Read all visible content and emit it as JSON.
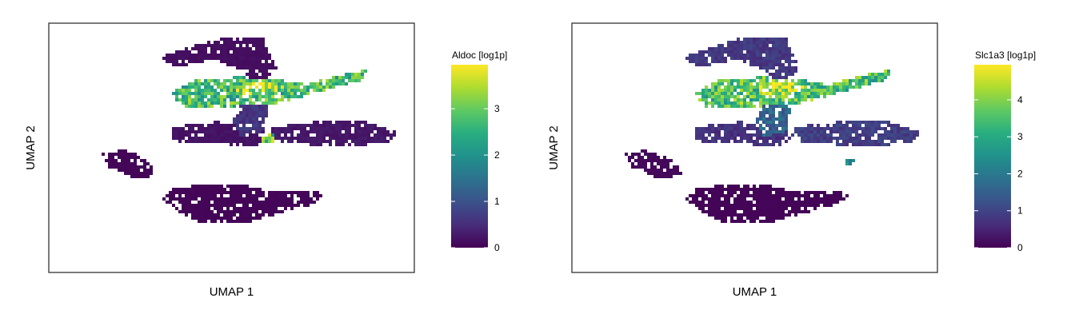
{
  "chart_data": [
    {
      "type": "heatmap",
      "title": "",
      "xlabel": "UMAP 1",
      "ylabel": "UMAP 2",
      "colorbar": {
        "label": "Aldoc [log1p]",
        "ticks": [
          0,
          1,
          2,
          3
        ],
        "range": [
          0,
          3.95
        ],
        "colormap": "viridis"
      },
      "regions": [
        {
          "label": "top-branch",
          "level": 0.15
        },
        {
          "label": "upper-lobe",
          "level": 2.7
        },
        {
          "label": "upper-core-bright",
          "level": 3.6
        },
        {
          "label": "stem",
          "level": 0.6
        },
        {
          "label": "middle-band",
          "level": 0.2
        },
        {
          "label": "middle-right-lobe",
          "level": 0.25
        },
        {
          "label": "lower-blob",
          "level": 0.05
        },
        {
          "label": "left-scatter",
          "level": 0.05
        },
        {
          "label": "small-green-cluster",
          "level": 2.9
        }
      ]
    },
    {
      "type": "heatmap",
      "title": "",
      "xlabel": "UMAP 1",
      "ylabel": "UMAP 2",
      "colorbar": {
        "label": "Slc1a3 [log1p]",
        "ticks": [
          0,
          1,
          2,
          3,
          4
        ],
        "range": [
          0,
          4.95
        ],
        "colormap": "viridis"
      },
      "regions": [
        {
          "label": "top-branch",
          "level": 0.8
        },
        {
          "label": "upper-lobe",
          "level": 3.5
        },
        {
          "label": "upper-core-bright",
          "level": 4.6
        },
        {
          "label": "stem",
          "level": 1.6
        },
        {
          "label": "middle-band",
          "level": 0.7
        },
        {
          "label": "middle-right-lobe",
          "level": 0.9
        },
        {
          "label": "lower-blob",
          "level": 0.05
        },
        {
          "label": "left-scatter",
          "level": 0.1
        },
        {
          "label": "small-teal-cluster",
          "level": 2.4
        }
      ]
    }
  ],
  "colors": {
    "frame": "#333333",
    "viridis": [
      "#440154",
      "#472d7b",
      "#3b528b",
      "#2c728e",
      "#21918c",
      "#28ae80",
      "#5ec962",
      "#addc30",
      "#fde725"
    ]
  }
}
